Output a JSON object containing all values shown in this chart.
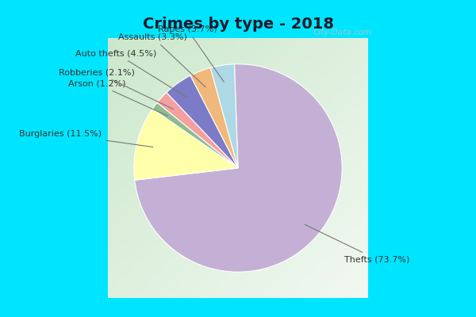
{
  "title": "Crimes by type - 2018",
  "labels": [
    "Thefts",
    "Burglaries",
    "Arson",
    "Robberies",
    "Auto thefts",
    "Assaults",
    "Rapes"
  ],
  "values": [
    73.7,
    11.5,
    1.2,
    2.1,
    4.5,
    3.3,
    3.7
  ],
  "colors": [
    "#c5b0d5",
    "#ffffaa",
    "#8fbc8f",
    "#f4a0a0",
    "#7b7bc8",
    "#f0b87a",
    "#add8e6"
  ],
  "label_texts": [
    "Thefts (73.7%)",
    "Burglaries (11.5%)",
    "Arson (1.2%)",
    "Robberies (2.1%)",
    "Auto thefts (4.5%)",
    "Assaults (3.3%)",
    "Rapes (3.7%)"
  ],
  "border_color": "#00e5ff",
  "border_width": 10,
  "title_fontsize": 14,
  "title_color": "#1a1a2e",
  "label_fontsize": 8
}
